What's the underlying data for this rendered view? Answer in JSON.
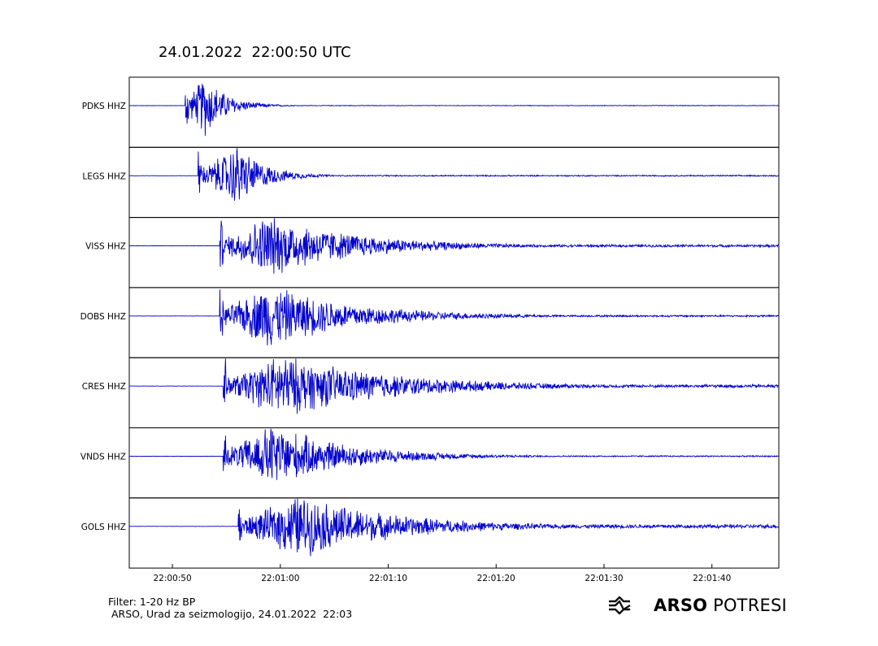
{
  "title": "24.01.2022  22:00:50 UTC",
  "footer": {
    "filter": "Filter: 1-20 Hz BP",
    "credit": "ARSO, Urad za seizmologijo, 24.01.2022  22:03"
  },
  "logo": {
    "icon": "earthquake-wave-icon",
    "bold_text": "ARSO",
    "light_text": " POTRESI"
  },
  "colors": {
    "trace": "#0000cc",
    "frame": "#000000"
  },
  "chart_data": {
    "type": "line",
    "title": "24.01.2022  22:00:50 UTC",
    "xlabel": "",
    "ylabel": "",
    "x_range_seconds_after_22:00:46": [
      0,
      60.2
    ],
    "x_ticks": [
      {
        "label": "22:00:50",
        "t": 4
      },
      {
        "label": "22:01:00",
        "t": 14
      },
      {
        "label": "22:01:10",
        "t": 24
      },
      {
        "label": "22:01:20",
        "t": 34
      },
      {
        "label": "22:01:30",
        "t": 44
      },
      {
        "label": "22:01:40",
        "t": 54
      }
    ],
    "grid": false,
    "series": [
      {
        "name": "PDKS HHZ",
        "onset": "22:00:51.2",
        "peak": "22:00:53.0",
        "amplitude": 1.0,
        "decay_s": 2.0,
        "tail": 0.01
      },
      {
        "name": "LEGS HHZ",
        "onset": "22:00:52.4",
        "peak": "22:00:56.0",
        "amplitude": 1.0,
        "decay_s": 2.5,
        "tail": 0.02
      },
      {
        "name": "VISS HHZ",
        "onset": "22:00:54.4",
        "peak": "22:00:58.8",
        "amplitude": 1.0,
        "decay_s": 8.0,
        "tail": 0.04
      },
      {
        "name": "DOBS HHZ",
        "onset": "22:00:54.4",
        "peak": "22:00:58.8",
        "amplitude": 1.0,
        "decay_s": 8.0,
        "tail": 0.03
      },
      {
        "name": "CRES HHZ",
        "onset": "22:00:54.7",
        "peak": "22:01:00.0",
        "amplitude": 1.0,
        "decay_s": 10.0,
        "tail": 0.05
      },
      {
        "name": "VNDS HHZ",
        "onset": "22:00:54.7",
        "peak": "22:00:59.2",
        "amplitude": 1.0,
        "decay_s": 7.0,
        "tail": 0.02
      },
      {
        "name": "GOLS HHZ",
        "onset": "22:00:56.1",
        "peak": "22:01:01.5",
        "amplitude": 1.0,
        "decay_s": 9.0,
        "tail": 0.06
      }
    ]
  }
}
